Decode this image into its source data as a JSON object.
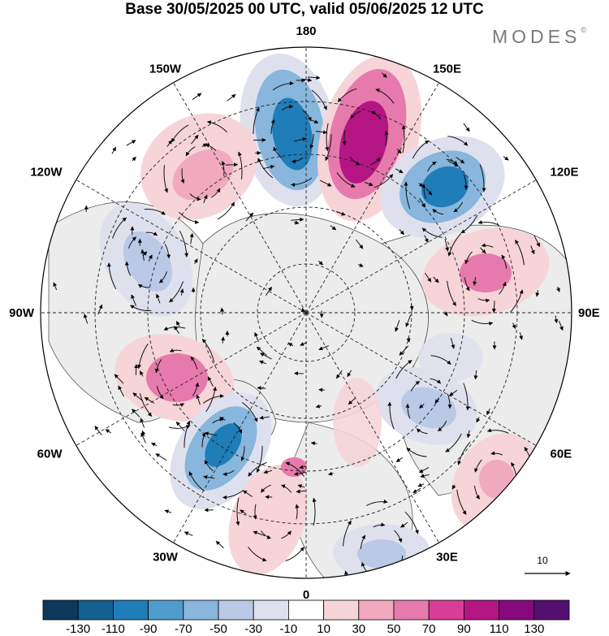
{
  "title": "Base 30/05/2025 00 UTC, valid 05/06/2025 12 UTC",
  "brand": {
    "name": "MODES",
    "mark": "©"
  },
  "map": {
    "projection": "north-polar-stereographic",
    "longitude_labels": [
      "180",
      "150E",
      "120E",
      "90E",
      "60E",
      "30E",
      "0",
      "30W",
      "60W",
      "90W",
      "120W",
      "150W"
    ],
    "vector_scale_label": "10",
    "anomaly_centers": [
      {
        "name": "neg-aleutian-north",
        "sign": "negative",
        "peak": -100
      },
      {
        "name": "pos-east-siberia",
        "sign": "positive",
        "peak": 110
      },
      {
        "name": "neg-kamchatka",
        "sign": "negative",
        "peak": -90
      },
      {
        "name": "pos-east-asia",
        "sign": "positive",
        "peak": 70
      },
      {
        "name": "pos-gulf-alaska",
        "sign": "positive",
        "peak": 50
      },
      {
        "name": "neg-canada-west",
        "sign": "negative",
        "peak": -60
      },
      {
        "name": "pos-hudson",
        "sign": "positive",
        "peak": 70
      },
      {
        "name": "neg-north-atlantic",
        "sign": "negative",
        "peak": -90
      },
      {
        "name": "pos-western-europe",
        "sign": "positive",
        "peak": 50
      },
      {
        "name": "neg-russia",
        "sign": "negative",
        "peak": -50
      },
      {
        "name": "pos-central-asia",
        "sign": "positive",
        "peak": 50
      },
      {
        "name": "neg-north-africa",
        "sign": "negative",
        "peak": -40
      }
    ]
  },
  "colorbar": {
    "ticks": [
      "-130",
      "-110",
      "-90",
      "-70",
      "-50",
      "-30",
      "-10",
      "10",
      "30",
      "50",
      "70",
      "90",
      "110",
      "130"
    ],
    "colors": [
      "#0d3a5c",
      "#135f8e",
      "#1f7db8",
      "#4f9ccd",
      "#88b6dc",
      "#b9c9e6",
      "#dfe0ee",
      "#ffffff",
      "#f6d4d8",
      "#f0a9bf",
      "#e67aac",
      "#d93d97",
      "#b51583",
      "#860a7e",
      "#54106f"
    ]
  }
}
